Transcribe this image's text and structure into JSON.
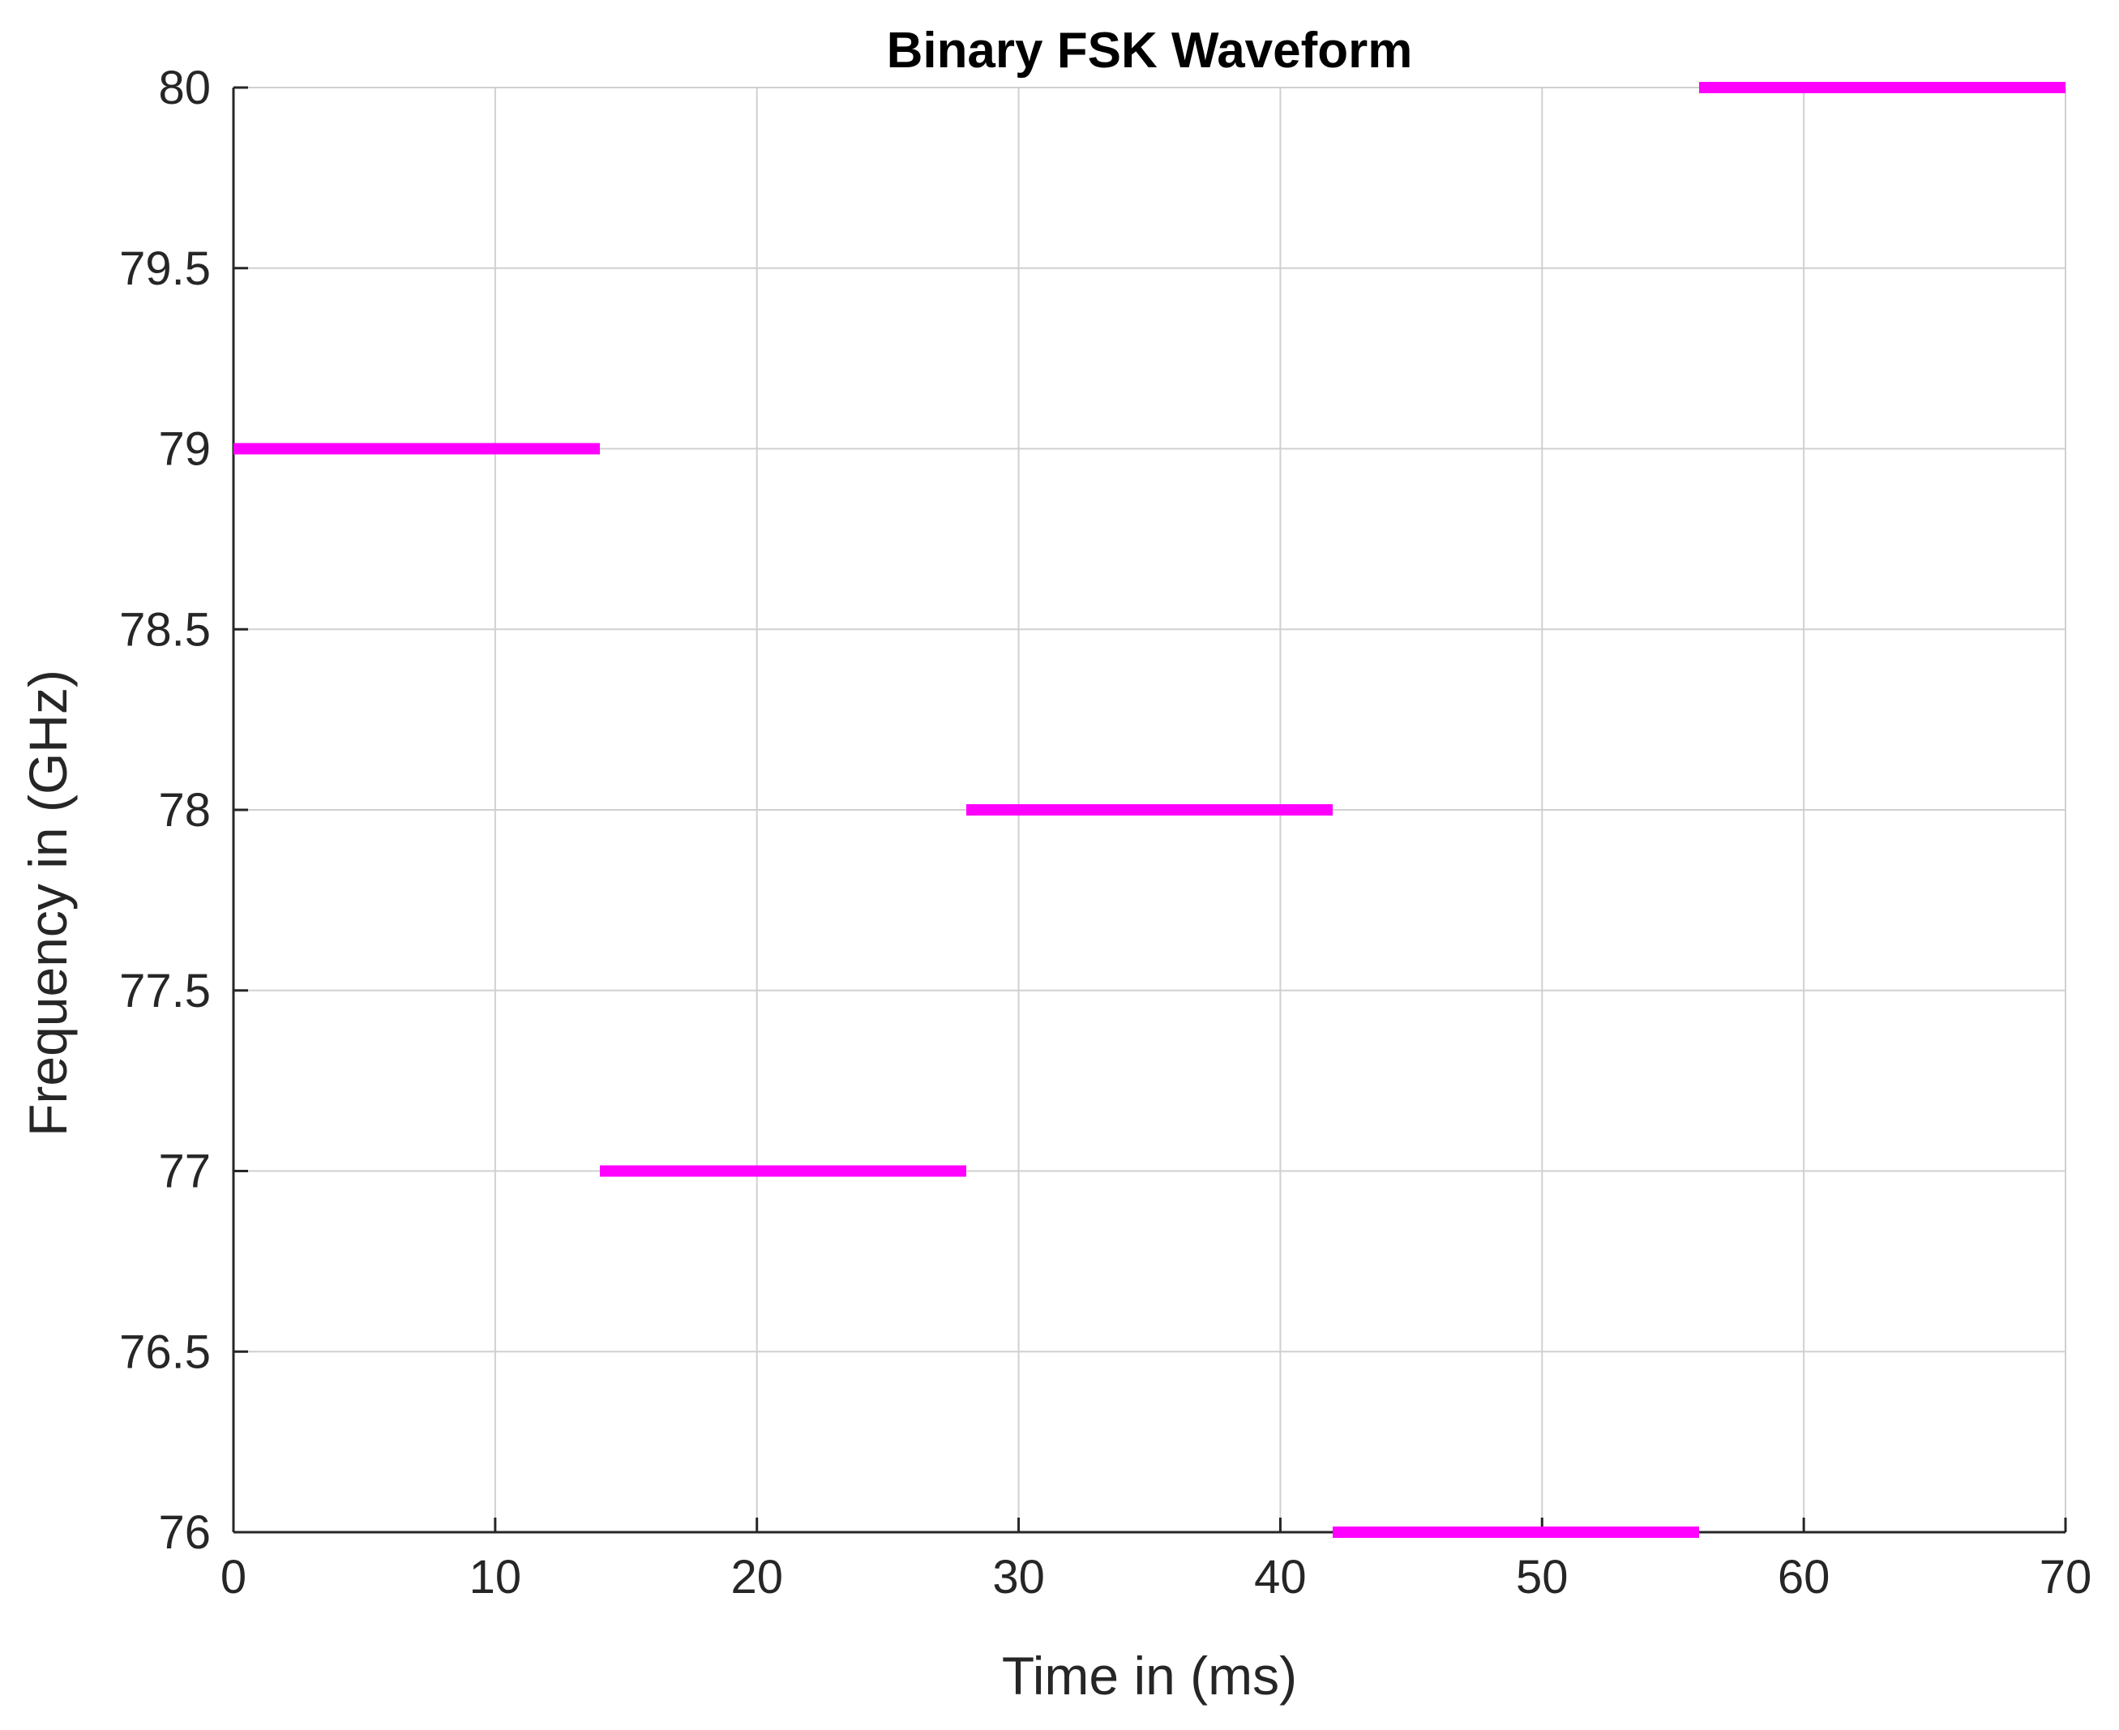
{
  "chart_data": {
    "type": "line",
    "title": "Binary FSK Waveform",
    "xlabel": "Time in (ms)",
    "ylabel": "Frequency in (GHz)",
    "xlim": [
      0,
      70
    ],
    "ylim": [
      76,
      80
    ],
    "xticks": [
      0,
      10,
      20,
      30,
      40,
      50,
      60,
      70
    ],
    "xtick_labels": [
      "0",
      "10",
      "20",
      "30",
      "40",
      "50",
      "60",
      "70"
    ],
    "yticks": [
      76,
      76.5,
      77,
      77.5,
      78,
      78.5,
      79,
      79.5,
      80
    ],
    "ytick_labels": [
      "76",
      "76.5",
      "77",
      "77.5",
      "78",
      "78.5",
      "79",
      "79.5",
      "80"
    ],
    "grid": true,
    "line_color": "#ff00ff",
    "segments": [
      {
        "x_start": 0,
        "x_end": 14,
        "y": 79
      },
      {
        "x_start": 14,
        "x_end": 28,
        "y": 77
      },
      {
        "x_start": 28,
        "x_end": 42,
        "y": 78
      },
      {
        "x_start": 42,
        "x_end": 56,
        "y": 76
      },
      {
        "x_start": 56,
        "x_end": 70,
        "y": 80
      }
    ]
  }
}
